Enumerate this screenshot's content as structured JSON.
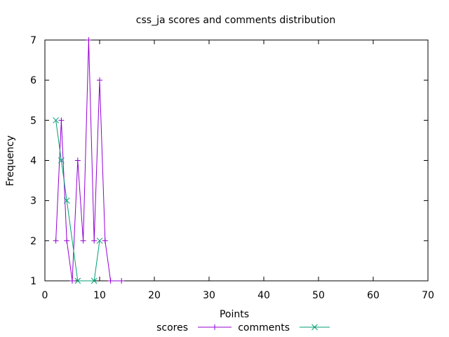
{
  "chart_data": {
    "type": "line",
    "title": "css_ja scores and comments distribution",
    "xlabel": "Points",
    "ylabel": "Frequency",
    "xlim": [
      0,
      70
    ],
    "ylim": [
      1,
      7
    ],
    "xticks": [
      0,
      10,
      20,
      30,
      40,
      50,
      60,
      70
    ],
    "yticks": [
      1,
      2,
      3,
      4,
      5,
      6,
      7
    ],
    "legend_position": "bottom-center",
    "grid": false,
    "series": [
      {
        "name": "scores",
        "color": "#9400d3",
        "marker": "plus",
        "points": [
          [
            2,
            2
          ],
          [
            3,
            5
          ],
          [
            4,
            2
          ],
          [
            5,
            1
          ],
          [
            6,
            4
          ],
          [
            7,
            2
          ],
          [
            8,
            7
          ],
          [
            9,
            2
          ],
          [
            10,
            6
          ],
          [
            11,
            2
          ],
          [
            12,
            1
          ],
          [
            14,
            1
          ]
        ]
      },
      {
        "name": "comments",
        "color": "#009e73",
        "marker": "cross",
        "points": [
          [
            2,
            5
          ],
          [
            3,
            4
          ],
          [
            4,
            3
          ],
          [
            6,
            1
          ],
          [
            9,
            1
          ],
          [
            10,
            2
          ]
        ]
      }
    ]
  }
}
